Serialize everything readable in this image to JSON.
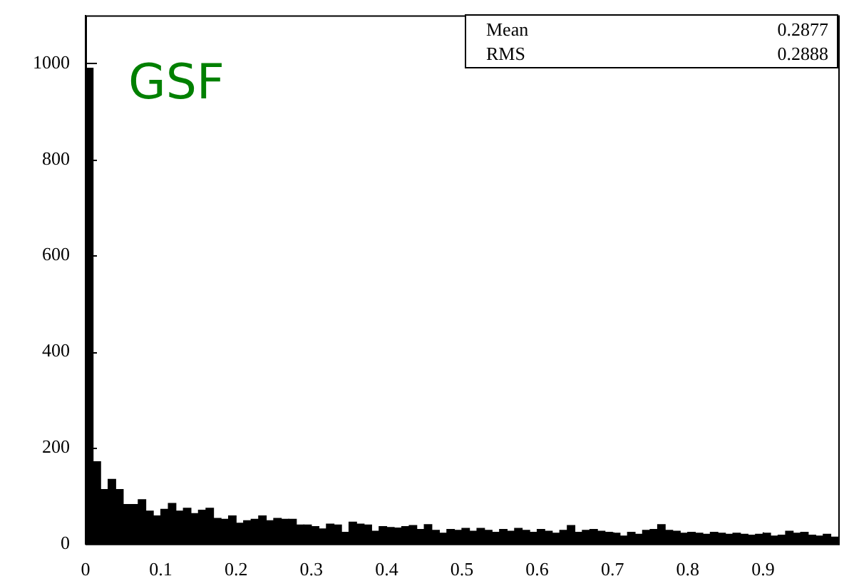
{
  "chart_data": {
    "type": "histogram",
    "title": "GSF",
    "annotations": [
      "Mean",
      "0.2877",
      "RMS",
      "0.2888"
    ],
    "bins": [
      0,
      0.01,
      0.02,
      0.03,
      0.04,
      0.05,
      0.06,
      0.07,
      0.08,
      0.09,
      0.1,
      0.11,
      0.12,
      0.13,
      0.14,
      0.15,
      0.16,
      0.17,
      0.18,
      0.19,
      0.2,
      0.21,
      0.22,
      0.23,
      0.24,
      0.25,
      0.26,
      0.27,
      0.28,
      0.29,
      0.3,
      0.31,
      0.32,
      0.33,
      0.34,
      0.35,
      0.36,
      0.37,
      0.38,
      0.39,
      0.4,
      0.41,
      0.42,
      0.43,
      0.44,
      0.45,
      0.46,
      0.47,
      0.48,
      0.49,
      0.5,
      0.51,
      0.52,
      0.53,
      0.54,
      0.55,
      0.56,
      0.57,
      0.58,
      0.59,
      0.6,
      0.61,
      0.62,
      0.63,
      0.64,
      0.65,
      0.66,
      0.67,
      0.68,
      0.69,
      0.7,
      0.71,
      0.72,
      0.73,
      0.74,
      0.75,
      0.76,
      0.77,
      0.78,
      0.79,
      0.8,
      0.81,
      0.82,
      0.83,
      0.84,
      0.85,
      0.86,
      0.87,
      0.88,
      0.89,
      0.9,
      0.91,
      0.92,
      0.93,
      0.94,
      0.95,
      0.96,
      0.97,
      0.98,
      0.99,
      1
    ],
    "values": [
      990,
      171,
      113,
      134,
      113,
      82,
      82,
      92,
      68,
      58,
      72,
      84,
      68,
      74,
      63,
      70,
      74,
      53,
      51,
      58,
      43,
      48,
      51,
      58,
      48,
      53,
      51,
      51,
      39,
      39,
      36,
      31,
      41,
      39,
      24,
      45,
      41,
      39,
      26,
      36,
      34,
      33,
      36,
      38,
      30,
      40,
      28,
      22,
      30,
      28,
      32,
      26,
      32,
      28,
      24,
      30,
      26,
      32,
      28,
      24,
      30,
      26,
      22,
      28,
      38,
      24,
      28,
      30,
      26,
      24,
      22,
      16,
      24,
      20,
      28,
      30,
      40,
      28,
      26,
      22,
      24,
      22,
      20,
      24,
      22,
      20,
      22,
      20,
      18,
      20,
      22,
      16,
      18,
      26,
      22,
      24,
      18,
      16,
      20,
      14
    ],
    "color": "#000000",
    "xlim": [
      0,
      1
    ],
    "xticks": [
      0,
      0.1,
      0.2,
      0.3,
      0.4,
      0.5,
      0.6,
      0.7,
      0.8,
      0.9
    ],
    "ylim": [
      0,
      1100
    ],
    "yticks": [
      0,
      200,
      400,
      600,
      800,
      1000
    ],
    "grid": false,
    "legend": false
  }
}
